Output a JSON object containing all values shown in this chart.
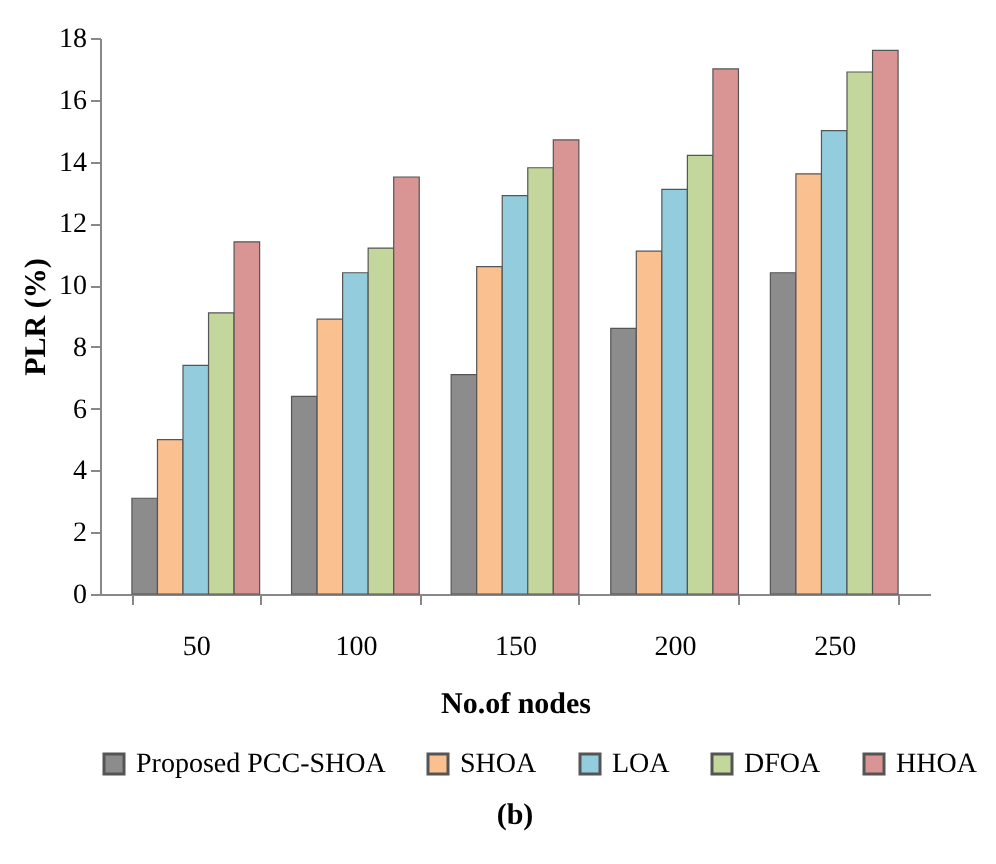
{
  "chart_data": {
    "type": "bar",
    "xlabel": "No.of nodes",
    "ylabel": "PLR (%)",
    "categories": [
      "50",
      "100",
      "150",
      "200",
      "250"
    ],
    "series": [
      {
        "name": "Proposed PCC-SHOA",
        "color": "#8c8c8c",
        "values": [
          3.1,
          6.4,
          7.1,
          8.6,
          10.4
        ]
      },
      {
        "name": "SHOA",
        "color": "#fac090",
        "values": [
          5.0,
          8.9,
          10.6,
          11.1,
          13.6
        ]
      },
      {
        "name": "LOA",
        "color": "#93cddd",
        "values": [
          7.4,
          10.4,
          12.9,
          13.1,
          15.0
        ]
      },
      {
        "name": "DFOA",
        "color": "#c3d69b",
        "values": [
          9.1,
          11.2,
          13.8,
          14.2,
          16.9
        ]
      },
      {
        "name": "HHOA",
        "color": "#d99594",
        "values": [
          11.4,
          13.5,
          14.7,
          17.0,
          17.6
        ]
      }
    ],
    "ylim": [
      0,
      18
    ],
    "yticks": [
      0,
      2,
      4,
      6,
      8,
      10,
      12,
      14,
      16,
      18
    ],
    "grid": false,
    "legend": "bottom",
    "annotations": [
      "(b)"
    ]
  }
}
